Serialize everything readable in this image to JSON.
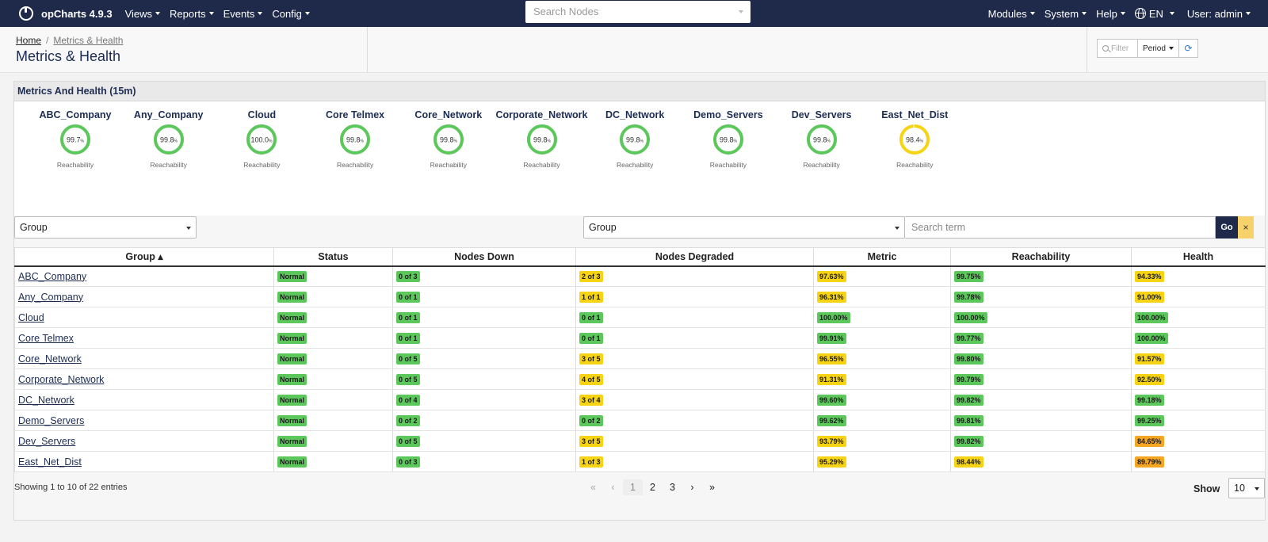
{
  "navbar": {
    "brand": "opCharts 4.9.3",
    "menu": [
      "Views",
      "Reports",
      "Events",
      "Config"
    ],
    "search_placeholder": "Search Nodes",
    "right_menu": [
      "Modules",
      "System",
      "Help"
    ],
    "language": "EN",
    "user": "User: admin"
  },
  "header": {
    "breadcrumb_home": "Home",
    "breadcrumb_current": "Metrics & Health",
    "title": "Metrics & Health",
    "filter_placeholder": "Filter",
    "period_label": "Period"
  },
  "panel": {
    "title": "Metrics And Health (15m)",
    "gauges": [
      {
        "name": "ABC_Company",
        "value": "99.7",
        "pct": 99.7,
        "color": "#5cc85c",
        "label": "Reachability"
      },
      {
        "name": "Any_Company",
        "value": "99.8",
        "pct": 99.8,
        "color": "#5cc85c",
        "label": "Reachability"
      },
      {
        "name": "Cloud",
        "value": "100.0",
        "pct": 100.0,
        "color": "#5cc85c",
        "label": "Reachability"
      },
      {
        "name": "Core Telmex",
        "value": "99.8",
        "pct": 99.8,
        "color": "#5cc85c",
        "label": "Reachability"
      },
      {
        "name": "Core_Network",
        "value": "99.8",
        "pct": 99.8,
        "color": "#5cc85c",
        "label": "Reachability"
      },
      {
        "name": "Corporate_Network",
        "value": "99.8",
        "pct": 99.8,
        "color": "#5cc85c",
        "label": "Reachability"
      },
      {
        "name": "DC_Network",
        "value": "99.8",
        "pct": 99.8,
        "color": "#5cc85c",
        "label": "Reachability"
      },
      {
        "name": "Demo_Servers",
        "value": "99.8",
        "pct": 99.8,
        "color": "#5cc85c",
        "label": "Reachability"
      },
      {
        "name": "Dev_Servers",
        "value": "99.8",
        "pct": 99.8,
        "color": "#5cc85c",
        "label": "Reachability"
      },
      {
        "name": "East_Net_Dist",
        "value": "98.4",
        "pct": 98.4,
        "color": "#f7d413",
        "label": "Reachability"
      }
    ],
    "gauge_unit": "%",
    "group_select_left": "Group",
    "group_select_right": "Group",
    "search_term_placeholder": "Search term",
    "go_label": "Go",
    "clear_label": "×"
  },
  "table": {
    "columns": [
      "Group ▴",
      "Status",
      "Nodes Down",
      "Nodes Degraded",
      "Metric",
      "Reachability",
      "Health"
    ],
    "rows": [
      {
        "group": "ABC_Company",
        "status": "Normal",
        "down": "0 of 3",
        "degraded": "2 of 3",
        "degraded_color": "yellow",
        "metric": "97.63%",
        "metric_color": "yellow",
        "reach": "99.75%",
        "reach_color": "green",
        "health": "94.33%",
        "health_color": "yellow"
      },
      {
        "group": "Any_Company",
        "status": "Normal",
        "down": "0 of 1",
        "degraded": "1 of 1",
        "degraded_color": "yellow",
        "metric": "96.31%",
        "metric_color": "yellow",
        "reach": "99.78%",
        "reach_color": "green",
        "health": "91.00%",
        "health_color": "yellow"
      },
      {
        "group": "Cloud",
        "status": "Normal",
        "down": "0 of 1",
        "degraded": "0 of 1",
        "degraded_color": "green",
        "metric": "100.00%",
        "metric_color": "green",
        "reach": "100.00%",
        "reach_color": "green",
        "health": "100.00%",
        "health_color": "green"
      },
      {
        "group": "Core Telmex",
        "status": "Normal",
        "down": "0 of 1",
        "degraded": "0 of 1",
        "degraded_color": "green",
        "metric": "99.91%",
        "metric_color": "green",
        "reach": "99.77%",
        "reach_color": "green",
        "health": "100.00%",
        "health_color": "green"
      },
      {
        "group": "Core_Network",
        "status": "Normal",
        "down": "0 of 5",
        "degraded": "3 of 5",
        "degraded_color": "yellow",
        "metric": "96.55%",
        "metric_color": "yellow",
        "reach": "99.80%",
        "reach_color": "green",
        "health": "91.57%",
        "health_color": "yellow"
      },
      {
        "group": "Corporate_Network",
        "status": "Normal",
        "down": "0 of 5",
        "degraded": "4 of 5",
        "degraded_color": "yellow",
        "metric": "91.31%",
        "metric_color": "yellow",
        "reach": "99.79%",
        "reach_color": "green",
        "health": "92.50%",
        "health_color": "yellow"
      },
      {
        "group": "DC_Network",
        "status": "Normal",
        "down": "0 of 4",
        "degraded": "3 of 4",
        "degraded_color": "yellow",
        "metric": "99.60%",
        "metric_color": "green",
        "reach": "99.82%",
        "reach_color": "green",
        "health": "99.18%",
        "health_color": "green"
      },
      {
        "group": "Demo_Servers",
        "status": "Normal",
        "down": "0 of 2",
        "degraded": "0 of 2",
        "degraded_color": "green",
        "metric": "99.62%",
        "metric_color": "green",
        "reach": "99.81%",
        "reach_color": "green",
        "health": "99.25%",
        "health_color": "green"
      },
      {
        "group": "Dev_Servers",
        "status": "Normal",
        "down": "0 of 5",
        "degraded": "3 of 5",
        "degraded_color": "yellow",
        "metric": "93.79%",
        "metric_color": "yellow",
        "reach": "99.82%",
        "reach_color": "green",
        "health": "84.65%",
        "health_color": "orange"
      },
      {
        "group": "East_Net_Dist",
        "status": "Normal",
        "down": "0 of 3",
        "degraded": "1 of 3",
        "degraded_color": "yellow",
        "metric": "95.29%",
        "metric_color": "yellow",
        "reach": "98.44%",
        "reach_color": "yellow",
        "health": "89.79%",
        "health_color": "orange"
      }
    ]
  },
  "footer": {
    "info": "Showing 1 to 10 of 22 entries",
    "pages": [
      "1",
      "2",
      "3"
    ],
    "first_icon": "«",
    "prev_icon": "‹",
    "next_icon": "›",
    "last_icon": "»",
    "show_label": "Show",
    "page_size": "10"
  },
  "colors": {
    "navbar": "#1f2a4a",
    "green": "#5cc85c",
    "yellow": "#f7d413",
    "orange": "#f5a623"
  }
}
